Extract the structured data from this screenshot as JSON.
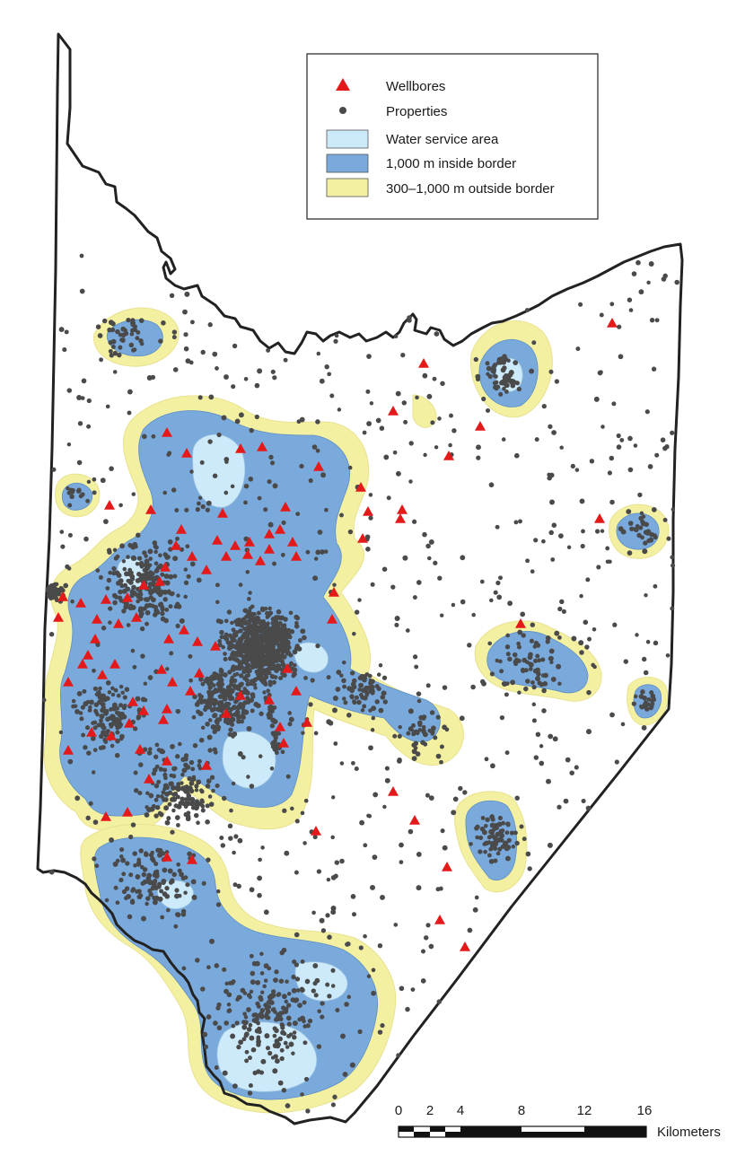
{
  "legend": {
    "wellbores": "Wellbores",
    "properties": "Properties",
    "water_service_area": "Water service area",
    "inside_border": "1,000 m inside border",
    "outside_border": "300–1,000 m outside border"
  },
  "scale_bar": {
    "ticks": [
      "0",
      "2",
      "4",
      "8",
      "12",
      "16"
    ],
    "unit": "Kilometers"
  },
  "colors": {
    "water_service_area": "#cdeafa",
    "inside_border": "#7aa9dc",
    "outside_border": "#f4f0a2",
    "wellbore": "#e41a1a",
    "property": "#4a4a4a",
    "county_border": "#222222"
  },
  "icons": {
    "wellbore_symbol": "red-triangle",
    "property_symbol": "dark-dot"
  }
}
